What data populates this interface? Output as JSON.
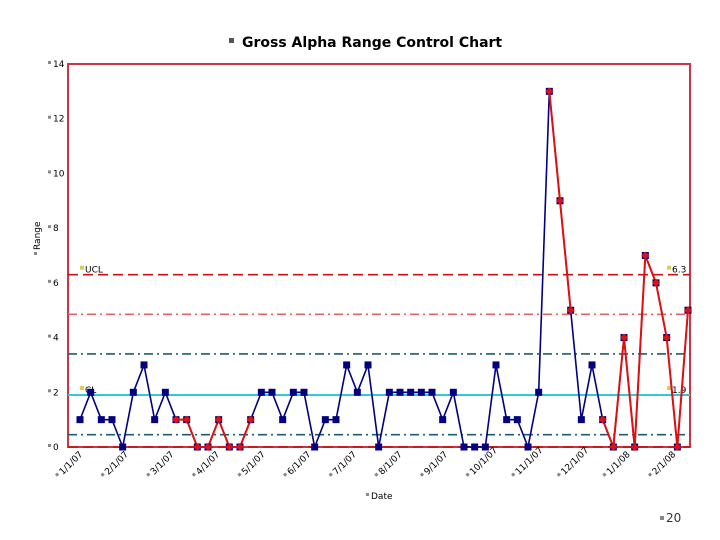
{
  "slide": {
    "page_number": "20"
  },
  "chart_data": {
    "type": "line",
    "title": "Gross Alpha Range Control Chart",
    "xlabel": "Date",
    "ylabel": "Range",
    "ylim": [
      0,
      14
    ],
    "yticks": [
      "0",
      "2",
      "4",
      "6",
      "8",
      "10",
      "12",
      "14"
    ],
    "xticks": [
      "1/1/07",
      "2/1/07",
      "3/1/07",
      "4/1/07",
      "5/1/07",
      "6/1/07",
      "7/1/07",
      "8/1/07",
      "9/1/07",
      "10/1/07",
      "11/1/07",
      "12/1/07",
      "1/1/08",
      "2/1/08"
    ],
    "reference_lines": [
      {
        "label": "UCL",
        "value_label": "6.3",
        "value": 6.3,
        "color": "#cc1111",
        "style": "dashed"
      },
      {
        "label": "CL",
        "value_label": "1.9",
        "value": 1.9,
        "color": "#33c8d8",
        "style": "solid"
      },
      {
        "label": "",
        "value": 4.85,
        "color": "#dd6666",
        "style": "dashdot"
      },
      {
        "label": "",
        "value": 3.4,
        "color": "#1a5f6e",
        "style": "dashdot"
      },
      {
        "label": "",
        "value": 0.45,
        "color": "#1a5f6e",
        "style": "dashdot"
      },
      {
        "label": "",
        "value": 0.0,
        "color": "#cc1111",
        "style": "dashed"
      }
    ],
    "series": [
      {
        "color": "#000080",
        "marker": "square",
        "values": [
          1,
          2,
          1,
          1,
          0,
          2,
          3,
          1,
          2,
          1,
          1,
          0,
          0,
          1,
          0,
          0,
          1,
          2,
          2,
          1,
          2,
          2,
          0,
          1,
          1,
          3,
          2,
          3,
          0,
          2,
          2,
          2,
          2,
          2,
          1,
          2,
          0,
          0,
          0,
          3,
          1,
          1,
          0,
          2,
          13,
          9,
          5,
          1,
          3,
          1,
          0,
          4,
          0,
          7,
          6,
          4,
          0,
          5
        ]
      },
      {
        "color": "#dd1111",
        "marker": "diamond",
        "segments": [
          {
            "start": 9,
            "values": [
              1,
              1,
              0,
              0,
              1,
              0,
              0,
              1
            ]
          },
          {
            "start": 44,
            "values": [
              13,
              9,
              5
            ]
          },
          {
            "start": 49,
            "values": [
              1,
              0,
              4,
              0,
              7,
              6,
              4,
              0,
              5
            ]
          }
        ]
      }
    ]
  }
}
